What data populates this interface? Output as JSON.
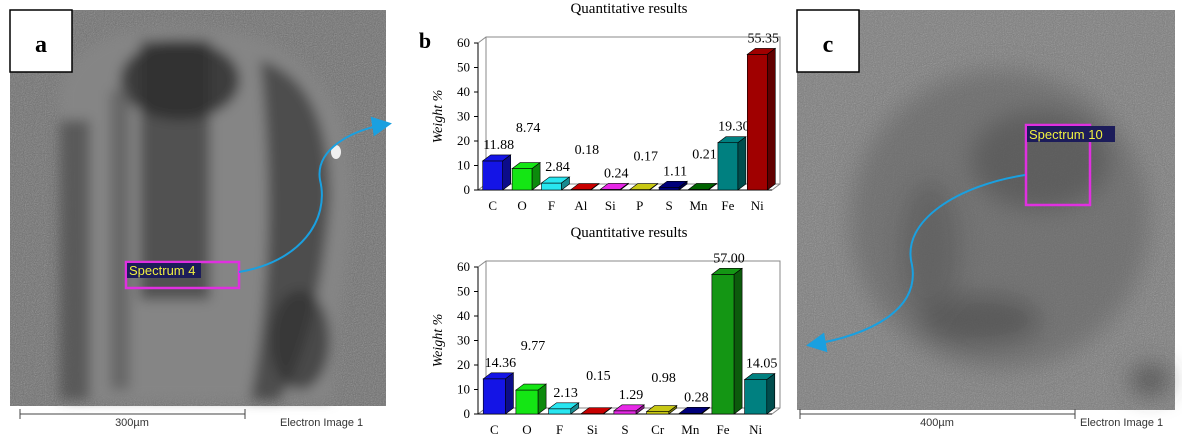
{
  "panels": [
    {
      "label": "a",
      "spectrum": "Spectrum 4",
      "scale": "300µm",
      "caption": "Electron Image 1"
    },
    {
      "label": "b"
    },
    {
      "label": "c",
      "spectrum": "Spectrum 10",
      "scale": "400µm",
      "caption": "Electron Image 1"
    }
  ],
  "chart_data": [
    {
      "type": "bar",
      "title": "Quantitative results",
      "y_label": "Weight %",
      "categories": [
        "C",
        "O",
        "F",
        "Al",
        "Si",
        "P",
        "S",
        "Mn",
        "Fe",
        "Ni"
      ],
      "values": [
        11.88,
        8.74,
        2.84,
        0.18,
        0.24,
        0.17,
        1.11,
        0.21,
        19.3,
        55.35
      ],
      "value_labels": [
        "11.88",
        "8.74",
        "2.84",
        "0.18",
        "0.24",
        "0.17",
        "1.11",
        "0.21",
        "19.30",
        "55.35"
      ],
      "colors": [
        "#1414e6",
        "#14e614",
        "#28e6f0",
        "#c80000",
        "#e628e6",
        "#c8c814",
        "#00007a",
        "#006400",
        "#008080",
        "#a00000"
      ],
      "ylim": [
        0,
        60
      ],
      "yticks": [
        0,
        10,
        20,
        30,
        40,
        50,
        60
      ]
    },
    {
      "type": "bar",
      "title": "Quantitative results",
      "y_label": "Weight %",
      "categories": [
        "C",
        "O",
        "F",
        "Si",
        "S",
        "Cr",
        "Mn",
        "Fe",
        "Ni"
      ],
      "values": [
        14.36,
        9.77,
        2.13,
        0.15,
        1.29,
        0.98,
        0.28,
        57.0,
        14.05
      ],
      "value_labels": [
        "14.36",
        "9.77",
        "2.13",
        "0.15",
        "1.29",
        "0.98",
        "0.28",
        "57.00",
        "14.05"
      ],
      "colors": [
        "#1414e6",
        "#14e614",
        "#28e6f0",
        "#c80000",
        "#e628e6",
        "#c8c814",
        "#00007a",
        "#149614",
        "#008080"
      ],
      "ylim": [
        0,
        60
      ],
      "yticks": [
        0,
        10,
        20,
        30,
        40,
        50,
        60
      ]
    }
  ]
}
